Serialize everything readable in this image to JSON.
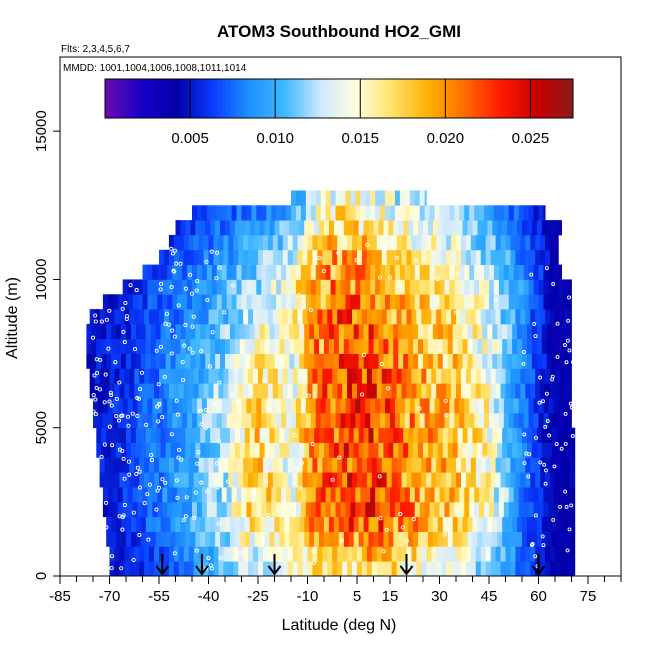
{
  "chart_data": {
    "type": "heatmap",
    "title": "ATOM3 Southbound HO2_GMI",
    "flights_label": "Flts: 2,3,4,5,6,7",
    "dates_label": "MMDD: 1001,1004,1006,1008,1011,1014",
    "xlabel": "Latitude (deg N)",
    "ylabel": "Altitude (m)",
    "xlim": [
      -85,
      85
    ],
    "ylim": [
      0,
      17500
    ],
    "x_ticks": [
      -85,
      -70,
      -55,
      -40,
      -25,
      -10,
      5,
      15,
      30,
      45,
      60,
      75
    ],
    "x_tick_labels": [
      "-85",
      "-70",
      "-55",
      "-40",
      "-25",
      "-10",
      "5",
      "15",
      "30",
      "45",
      "60",
      "75"
    ],
    "y_ticks": [
      0,
      5000,
      10000,
      15000
    ],
    "y_tick_labels": [
      "0",
      "5000",
      "10000",
      "15000"
    ],
    "colorbar": {
      "min": 0.0,
      "max": 0.0275,
      "ticks": [
        0.005,
        0.01,
        0.015,
        0.02,
        0.025
      ],
      "tick_labels": [
        "0.005",
        "0.010",
        "0.015",
        "0.020",
        "0.025"
      ],
      "colors": [
        "#6a0dad",
        "#1a00c8",
        "#0000a8",
        "#0a3cff",
        "#1e90ff",
        "#40b8ff",
        "#cfe8ff",
        "#ffffe0",
        "#ffe066",
        "#ffb000",
        "#ff6a00",
        "#ff1a00",
        "#c80000",
        "#8b1a1a"
      ]
    },
    "arrows_latitude": [
      -54,
      -42,
      -20,
      20,
      60
    ],
    "altitude_bands_m": [
      250,
      750,
      1250,
      1750,
      2250,
      2750,
      3250,
      3750,
      4250,
      4750,
      5250,
      5750,
      6250,
      6750,
      7250,
      7750,
      8250,
      8750,
      9250,
      9750,
      10250,
      10750,
      11250,
      11750,
      12250,
      12750
    ],
    "latitude_extent_by_band": [
      [
        -70,
        71
      ],
      [
        -70,
        71
      ],
      [
        -71,
        71
      ],
      [
        -71,
        71
      ],
      [
        -72,
        71
      ],
      [
        -72,
        71
      ],
      [
        -73,
        71
      ],
      [
        -73,
        71
      ],
      [
        -74,
        71
      ],
      [
        -74,
        71
      ],
      [
        -75,
        70
      ],
      [
        -75,
        70
      ],
      [
        -76,
        70
      ],
      [
        -76,
        70
      ],
      [
        -77,
        70
      ],
      [
        -77,
        70
      ],
      [
        -77,
        70
      ],
      [
        -76,
        70
      ],
      [
        -72,
        70
      ],
      [
        -66,
        70
      ],
      [
        -60,
        67
      ],
      [
        -55,
        66
      ],
      [
        -52,
        66
      ],
      [
        -50,
        67
      ],
      [
        -45,
        62
      ],
      [
        -15,
        26
      ]
    ],
    "profile_description_values": {
      "latitude_nodes": [
        -77,
        -65,
        -55,
        -45,
        -35,
        -25,
        -15,
        -8,
        0,
        8,
        15,
        25,
        35,
        45,
        55,
        65,
        71
      ],
      "low_level_0_to_2km": [
        0.004,
        0.005,
        0.006,
        0.008,
        0.011,
        0.012,
        0.014,
        0.016,
        0.016,
        0.016,
        0.016,
        0.015,
        0.013,
        0.011,
        0.007,
        0.004,
        0.004
      ],
      "mid_level_2_to_6km": [
        0.005,
        0.006,
        0.008,
        0.01,
        0.013,
        0.018,
        0.014,
        0.02,
        0.022,
        0.023,
        0.021,
        0.019,
        0.018,
        0.015,
        0.008,
        0.004,
        0.004
      ],
      "upper_level_6_to_10km": [
        0.005,
        0.005,
        0.007,
        0.008,
        0.01,
        0.012,
        0.015,
        0.019,
        0.021,
        0.02,
        0.018,
        0.017,
        0.016,
        0.013,
        0.009,
        0.004,
        0.004
      ],
      "top_level_10_to_13km": [
        0.002,
        0.003,
        0.004,
        0.005,
        0.006,
        0.007,
        0.008,
        0.012,
        0.015,
        0.014,
        0.013,
        0.012,
        0.01,
        0.008,
        0.006,
        0.004,
        0.004
      ]
    }
  }
}
